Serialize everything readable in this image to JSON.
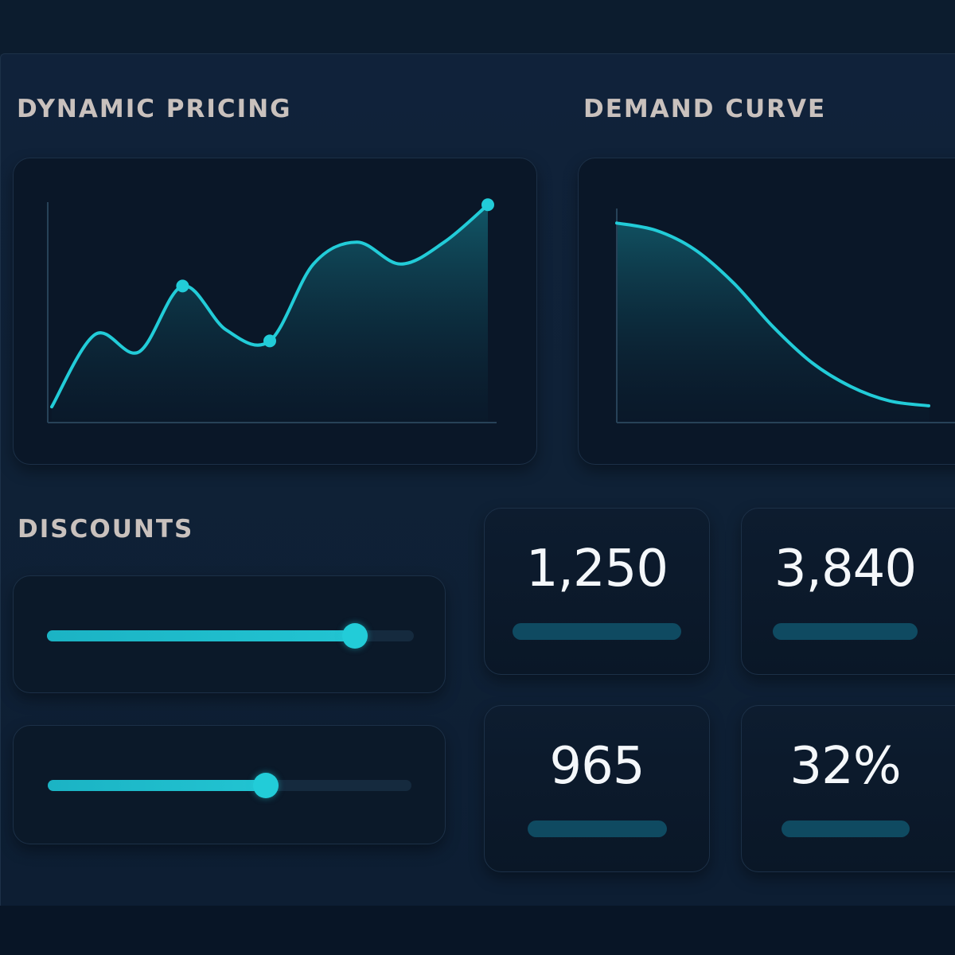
{
  "sections": {
    "dynamic_pricing_title": "DYNAMIC PRICING",
    "demand_curve_title": "DEMAND CURVE",
    "discounts_title": "DISCOUNTS"
  },
  "colors": {
    "accent": "#22ccd8",
    "background": "#0f2136",
    "panel": "#0a1728",
    "title_text": "#c9c1bd",
    "value_text": "#f4f7fa",
    "bar": "#0f4a61"
  },
  "chart_data": [
    {
      "type": "area",
      "title": "DYNAMIC PRICING",
      "x": [
        0,
        1,
        2,
        3,
        4,
        5,
        6,
        7,
        8,
        9,
        10
      ],
      "y": [
        0.05,
        0.38,
        0.3,
        0.6,
        0.4,
        0.35,
        0.7,
        0.8,
        0.7,
        0.8,
        0.97
      ],
      "highlighted_points": [
        3,
        5,
        10
      ],
      "ylim": [
        0,
        1
      ],
      "grid": false,
      "legend": "none"
    },
    {
      "type": "area",
      "title": "DEMAND CURVE",
      "x": [
        0,
        1,
        2,
        3,
        4,
        5,
        6,
        7,
        8
      ],
      "y": [
        0.83,
        0.8,
        0.72,
        0.58,
        0.4,
        0.25,
        0.15,
        0.09,
        0.07
      ],
      "ylim": [
        0,
        1
      ],
      "grid": false,
      "legend": "none"
    }
  ],
  "discounts": {
    "sliders": [
      {
        "value": 0.84
      },
      {
        "value": 0.6
      }
    ]
  },
  "stats": [
    {
      "value": "1,250",
      "bar_level": 0.75
    },
    {
      "value": "3,840",
      "bar_level": 0.7
    },
    {
      "value": "965",
      "bar_level": 0.62
    },
    {
      "value": "32%",
      "bar_level": 0.62
    }
  ]
}
